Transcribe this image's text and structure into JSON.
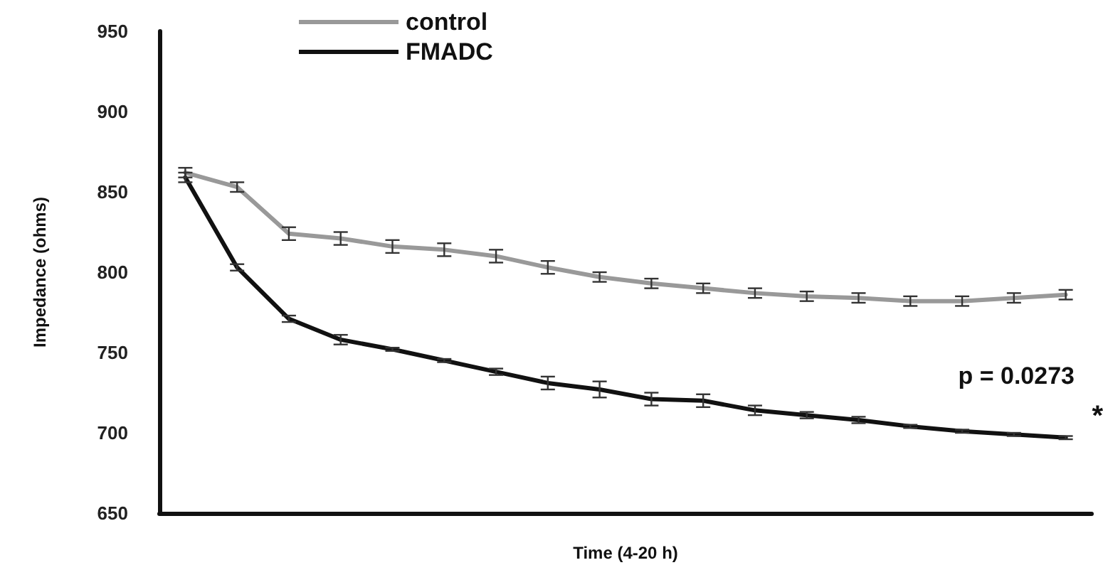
{
  "chart_data": {
    "type": "line",
    "xlabel": "Time (4-20 h)",
    "ylabel": "Impedance (ohms)",
    "categories": [
      null,
      null,
      null,
      null,
      null,
      null,
      null,
      null,
      null,
      null,
      null,
      null,
      null,
      null,
      null,
      null,
      null,
      null
    ],
    "series": [
      {
        "name": "control",
        "color": "#999999",
        "values": [
          862,
          853,
          824,
          821,
          816,
          814,
          810,
          803,
          797,
          793,
          790,
          787,
          785,
          784,
          782,
          782,
          784,
          786
        ],
        "errors": [
          3,
          3,
          4,
          4,
          4,
          4,
          4,
          4,
          3,
          3,
          3,
          3,
          3,
          3,
          3,
          3,
          3,
          3
        ]
      },
      {
        "name": "FMADC",
        "color": "#111111",
        "values": [
          859,
          803,
          771,
          758,
          752,
          745,
          738,
          731,
          727,
          721,
          720,
          714,
          711,
          708,
          704,
          701,
          699,
          697
        ],
        "errors": [
          3,
          2,
          2,
          3,
          1,
          1,
          2,
          4,
          5,
          4,
          4,
          3,
          2,
          2,
          1,
          1,
          1,
          1
        ]
      }
    ],
    "ylim": [
      650,
      950
    ],
    "yticks": [
      650,
      700,
      750,
      800,
      850,
      900,
      950
    ],
    "annotations": [
      "p = 0.0273",
      "*"
    ],
    "grid": false,
    "legend": "top left",
    "marker": "none",
    "line_style": "solid"
  }
}
